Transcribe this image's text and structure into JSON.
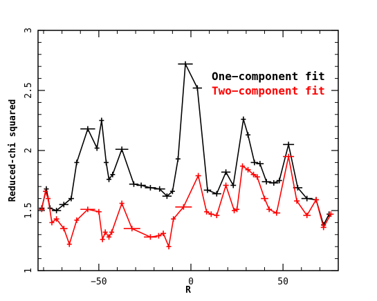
{
  "chart_data": {
    "type": "line",
    "title": "",
    "xlabel": "R",
    "ylabel": "Reduced-chi squared",
    "xlim": [
      -83,
      80
    ],
    "ylim": [
      1,
      3
    ],
    "x_ticks": [
      -50,
      0,
      50
    ],
    "y_ticks": [
      1,
      1.5,
      2,
      2.5,
      3
    ],
    "x_tick_labels": [
      "−50",
      "0",
      "50"
    ],
    "y_tick_labels": [
      "1",
      "1.5",
      "2",
      "2.5",
      "3"
    ],
    "grid": false,
    "legend_position": "top-right",
    "series": [
      {
        "name": "One−component fit",
        "color": "#000000",
        "points": [
          {
            "x": -81,
            "y": 1.52,
            "xerr": 1.5
          },
          {
            "x": -78.5,
            "y": 1.68,
            "xerr": 0.8
          },
          {
            "x": -76.5,
            "y": 1.52,
            "xerr": 0.8
          },
          {
            "x": -73,
            "y": 1.5,
            "xerr": 2.5
          },
          {
            "x": -69,
            "y": 1.55,
            "xerr": 2.5
          },
          {
            "x": -65,
            "y": 1.6,
            "xerr": 1.5
          },
          {
            "x": -62,
            "y": 1.9,
            "xerr": 1.2
          },
          {
            "x": -56,
            "y": 2.18,
            "xerr": 4
          },
          {
            "x": -51,
            "y": 2.02,
            "xerr": 1.2
          },
          {
            "x": -48.5,
            "y": 2.25,
            "xerr": 1.2
          },
          {
            "x": -46,
            "y": 1.9,
            "xerr": 0.8
          },
          {
            "x": -44.5,
            "y": 1.76,
            "xerr": 0.8
          },
          {
            "x": -42.5,
            "y": 1.8,
            "xerr": 0.8
          },
          {
            "x": -37.5,
            "y": 2.01,
            "xerr": 3.5
          },
          {
            "x": -31,
            "y": 1.72,
            "xerr": 2.5
          },
          {
            "x": -27,
            "y": 1.71,
            "xerr": 2.5
          },
          {
            "x": -22,
            "y": 1.69,
            "xerr": 3
          },
          {
            "x": -17,
            "y": 1.68,
            "xerr": 3
          },
          {
            "x": -13,
            "y": 1.62,
            "xerr": 2.5
          },
          {
            "x": -10,
            "y": 1.66,
            "xerr": 1
          },
          {
            "x": -7,
            "y": 1.93,
            "xerr": 1
          },
          {
            "x": -3,
            "y": 2.72,
            "xerr": 4
          },
          {
            "x": 3.5,
            "y": 2.52,
            "xerr": 2.5
          },
          {
            "x": 9,
            "y": 1.67,
            "xerr": 2
          },
          {
            "x": 14,
            "y": 1.64,
            "xerr": 2.5
          },
          {
            "x": 19,
            "y": 1.82,
            "xerr": 2.5
          },
          {
            "x": 23,
            "y": 1.71,
            "xerr": 1.5
          },
          {
            "x": 28.5,
            "y": 2.26,
            "xerr": 1.2
          },
          {
            "x": 31,
            "y": 2.13,
            "xerr": 1.2
          },
          {
            "x": 34.5,
            "y": 1.9,
            "xerr": 2
          },
          {
            "x": 37.5,
            "y": 1.89,
            "xerr": 2
          },
          {
            "x": 41,
            "y": 1.74,
            "xerr": 2.5
          },
          {
            "x": 45,
            "y": 1.73,
            "xerr": 2.5
          },
          {
            "x": 48,
            "y": 1.75,
            "xerr": 1.5
          },
          {
            "x": 53,
            "y": 2.05,
            "xerr": 3
          },
          {
            "x": 58,
            "y": 1.69,
            "xerr": 2.5
          },
          {
            "x": 63,
            "y": 1.6,
            "xerr": 3
          },
          {
            "x": 68,
            "y": 1.59,
            "xerr": 1
          },
          {
            "x": 72,
            "y": 1.38,
            "xerr": 1.2
          },
          {
            "x": 75,
            "y": 1.47,
            "xerr": 1.2
          }
        ]
      },
      {
        "name": "Two−component fit",
        "color": "#ff0000",
        "points": [
          {
            "x": -81,
            "y": 1.51,
            "xerr": 1.5
          },
          {
            "x": -79,
            "y": 1.66,
            "xerr": 0.6
          },
          {
            "x": -77.5,
            "y": 1.6,
            "xerr": 0.6
          },
          {
            "x": -75.5,
            "y": 1.4,
            "xerr": 0.8
          },
          {
            "x": -73,
            "y": 1.43,
            "xerr": 1.5
          },
          {
            "x": -69,
            "y": 1.35,
            "xerr": 2
          },
          {
            "x": -66,
            "y": 1.22,
            "xerr": 1.2
          },
          {
            "x": -62,
            "y": 1.42,
            "xerr": 1.2
          },
          {
            "x": -56,
            "y": 1.51,
            "xerr": 4
          },
          {
            "x": -50,
            "y": 1.49,
            "xerr": 1.5
          },
          {
            "x": -48,
            "y": 1.26,
            "xerr": 0.8
          },
          {
            "x": -46.5,
            "y": 1.32,
            "xerr": 0.8
          },
          {
            "x": -44.5,
            "y": 1.28,
            "xerr": 0.8
          },
          {
            "x": -43,
            "y": 1.32,
            "xerr": 0.8
          },
          {
            "x": -37.5,
            "y": 1.56,
            "xerr": 1.2
          },
          {
            "x": -32,
            "y": 1.35,
            "xerr": 4.5
          },
          {
            "x": -22,
            "y": 1.28,
            "xerr": 3.5
          },
          {
            "x": -17.5,
            "y": 1.29,
            "xerr": 1.5
          },
          {
            "x": -15,
            "y": 1.31,
            "xerr": 1.5
          },
          {
            "x": -12,
            "y": 1.2,
            "xerr": 1.2
          },
          {
            "x": -9.5,
            "y": 1.43,
            "xerr": 0.8
          },
          {
            "x": -4,
            "y": 1.53,
            "xerr": 4.5
          },
          {
            "x": 4,
            "y": 1.79,
            "xerr": 1.5
          },
          {
            "x": 8.5,
            "y": 1.49,
            "xerr": 1.2
          },
          {
            "x": 11,
            "y": 1.47,
            "xerr": 1.5
          },
          {
            "x": 14,
            "y": 1.46,
            "xerr": 1.5
          },
          {
            "x": 19,
            "y": 1.71,
            "xerr": 1.5
          },
          {
            "x": 23.5,
            "y": 1.5,
            "xerr": 1.2
          },
          {
            "x": 25,
            "y": 1.51,
            "xerr": 1.2
          },
          {
            "x": 28,
            "y": 1.87,
            "xerr": 1.2
          },
          {
            "x": 31,
            "y": 1.84,
            "xerr": 1.5
          },
          {
            "x": 34,
            "y": 1.8,
            "xerr": 1.5
          },
          {
            "x": 36,
            "y": 1.78,
            "xerr": 1.5
          },
          {
            "x": 40,
            "y": 1.6,
            "xerr": 2
          },
          {
            "x": 42.5,
            "y": 1.51,
            "xerr": 1.5
          },
          {
            "x": 46.5,
            "y": 1.48,
            "xerr": 2
          },
          {
            "x": 53,
            "y": 1.95,
            "xerr": 3
          },
          {
            "x": 57.5,
            "y": 1.58,
            "xerr": 1.5
          },
          {
            "x": 63,
            "y": 1.46,
            "xerr": 2
          },
          {
            "x": 68,
            "y": 1.59,
            "xerr": 1.5
          },
          {
            "x": 72,
            "y": 1.36,
            "xerr": 1.5
          },
          {
            "x": 76,
            "y": 1.47,
            "xerr": 1.5
          }
        ]
      }
    ]
  }
}
